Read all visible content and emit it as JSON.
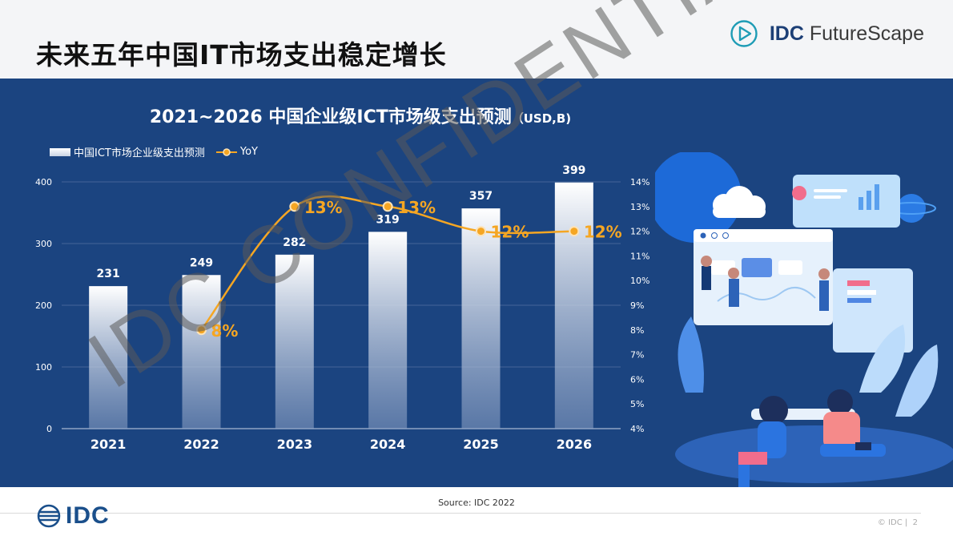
{
  "page": {
    "title": "未来五年中国IT市场支出稳定增长",
    "brand": {
      "name_bold": "IDC",
      "name_rest": " FutureScape"
    },
    "footer": {
      "source": "Source: IDC 2022",
      "logo_text": "IDC",
      "copyright": "© IDC |",
      "page_number": "2"
    },
    "watermark": "IDC CONFIDENTIAL"
  },
  "chart_data": {
    "type": "bar",
    "title": "2021~2026 中国企业级ICT市场级支出预测",
    "title_unit": "（USD,B)",
    "categories": [
      "2021",
      "2022",
      "2023",
      "2024",
      "2025",
      "2026"
    ],
    "series": [
      {
        "name": "中国ICT市场企业级支出预测",
        "type": "bar",
        "axis": "left",
        "values": [
          231,
          249,
          282,
          319,
          357,
          399
        ]
      },
      {
        "name": "YoY",
        "type": "line",
        "axis": "right",
        "values": [
          null,
          8,
          13,
          13,
          12,
          12
        ],
        "labels": [
          "",
          "8%",
          "13%",
          "13%",
          "12%",
          "12%"
        ]
      }
    ],
    "y_left": {
      "range": [
        0,
        400
      ],
      "ticks": [
        "0",
        "100",
        "200",
        "300",
        "400"
      ]
    },
    "y_right": {
      "range": [
        4,
        14
      ],
      "ticks": [
        "4%",
        "5%",
        "6%",
        "7%",
        "8%",
        "9%",
        "10%",
        "11%",
        "12%",
        "13%",
        "14%"
      ]
    },
    "grid": true,
    "legend": "top-left",
    "colors": {
      "bar_top": "#ffffff",
      "bar_bottom": "#8da2c6",
      "line": "#f5a623",
      "label_line": "#f5a623",
      "axis_text": "#ffffff",
      "background": "#1b4480"
    }
  }
}
